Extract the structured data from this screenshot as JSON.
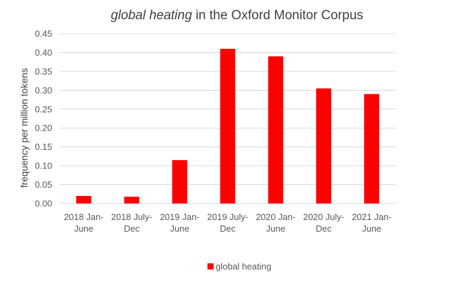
{
  "chart_data": {
    "type": "bar",
    "title": {
      "italic": "global heating",
      "rest": " in the Oxford Monitor Corpus"
    },
    "xlabel": "",
    "ylabel": "frequency per million tokens",
    "categories": [
      [
        "2018 Jan-",
        "June"
      ],
      [
        "2018 July-",
        "Dec"
      ],
      [
        "2019 Jan-",
        "June"
      ],
      [
        "2019 July-",
        "Dec"
      ],
      [
        "2020 Jan-",
        "June"
      ],
      [
        "2020 July-",
        "Dec"
      ],
      [
        "2021 Jan-",
        "June"
      ]
    ],
    "series": [
      {
        "name": "global heating",
        "values": [
          0.02,
          0.018,
          0.115,
          0.41,
          0.39,
          0.305,
          0.29
        ]
      }
    ],
    "ylim": [
      0,
      0.45
    ],
    "yticks": [
      "0.00",
      "0.05",
      "0.10",
      "0.15",
      "0.20",
      "0.25",
      "0.30",
      "0.35",
      "0.40",
      "0.45"
    ],
    "grid": true,
    "legend": "bottom",
    "colors": {
      "bar": "#ff0000",
      "grid": "#d9d9d9"
    }
  }
}
